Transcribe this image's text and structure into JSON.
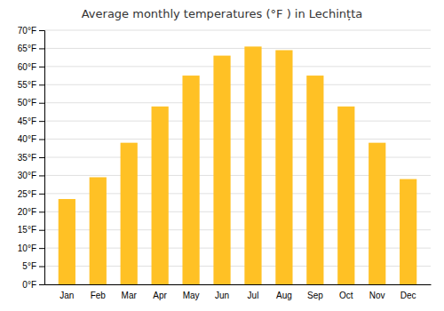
{
  "chart_data": {
    "type": "bar",
    "title": "Average monthly temperatures (°F ) in Lechințta",
    "categories": [
      "Jan",
      "Feb",
      "Mar",
      "Apr",
      "May",
      "Jun",
      "Jul",
      "Aug",
      "Sep",
      "Oct",
      "Nov",
      "Dec"
    ],
    "values": [
      23.5,
      29.5,
      39.0,
      49.0,
      57.5,
      63.0,
      65.5,
      64.5,
      57.5,
      49.0,
      39.0,
      29.0
    ],
    "color": "#FFC125",
    "ylim": [
      0,
      70
    ],
    "yticks": [
      {
        "value": 0,
        "label": "0°F"
      },
      {
        "value": 5,
        "label": "5°F"
      },
      {
        "value": 10,
        "label": "10°F"
      },
      {
        "value": 15,
        "label": "15°F"
      },
      {
        "value": 20,
        "label": "20°F"
      },
      {
        "value": 25,
        "label": "25°F"
      },
      {
        "value": 30,
        "label": "30°F"
      },
      {
        "value": 35,
        "label": "35°F"
      },
      {
        "value": 40,
        "label": "40°F"
      },
      {
        "value": 45,
        "label": "45°F"
      },
      {
        "value": 50,
        "label": "50°F"
      },
      {
        "value": 55,
        "label": "55°F"
      },
      {
        "value": 60,
        "label": "60°F"
      },
      {
        "value": 65,
        "label": "65°F"
      },
      {
        "value": 70,
        "label": "70°F"
      }
    ],
    "grid": true
  }
}
